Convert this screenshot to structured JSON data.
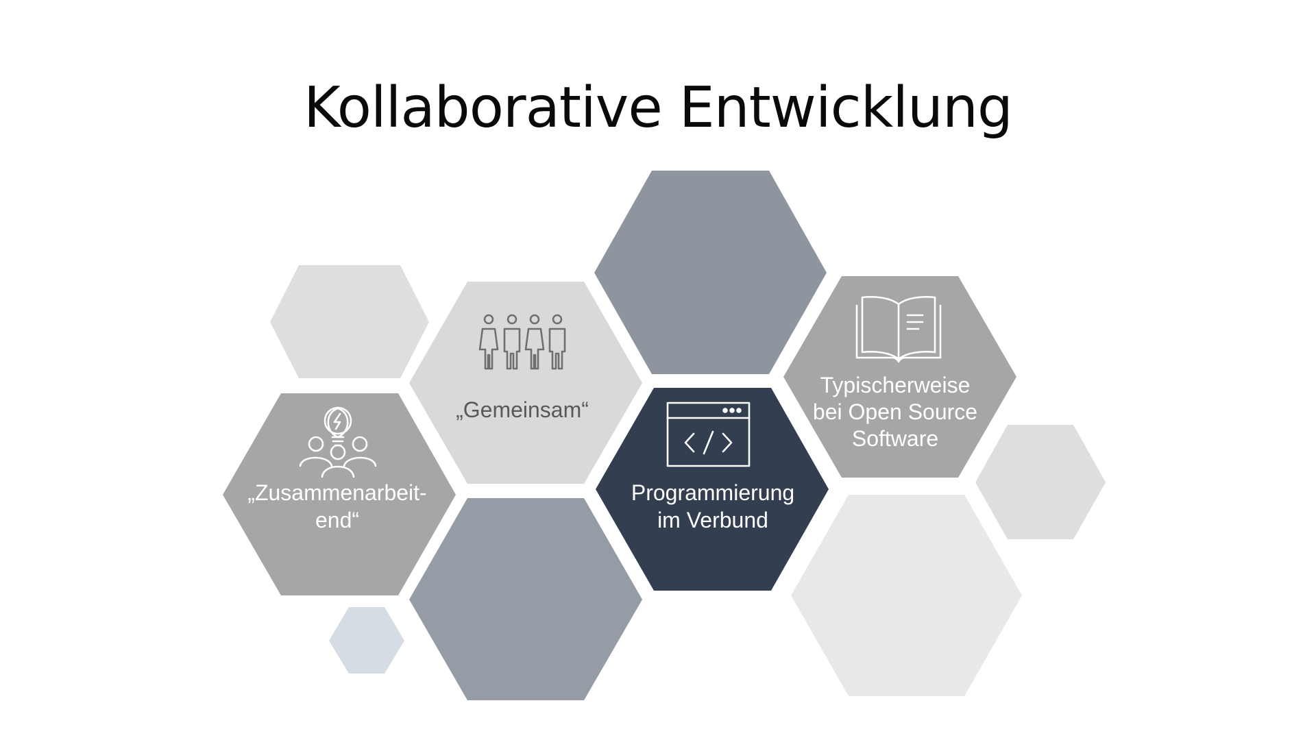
{
  "slide": {
    "title": "Kollaborative Entwicklung"
  },
  "hexagons": {
    "zusammenarbeitend": {
      "lines": [
        "„Zusammenarbeit-",
        "end“"
      ],
      "icon": "people-idea-icon",
      "color": "#a6a6a6"
    },
    "gemeinsam": {
      "lines": [
        "„Gemeinsam“"
      ],
      "icon": "group-of-people-icon",
      "color": "#d9d9d9"
    },
    "programmierung": {
      "lines": [
        "Programmierung",
        "im Verbund"
      ],
      "icon": "code-window-icon",
      "color": "#333f51"
    },
    "open_source": {
      "lines": [
        "Typischerweise",
        "bei Open Source",
        "Software"
      ],
      "icon": "open-book-icon",
      "color": "#a6a6a6"
    }
  },
  "decor_colors": {
    "slate": "#8e959f",
    "slate_light": "#959ca6",
    "light_gray": "#dedede",
    "lighter_gray": "#e8e8e8",
    "blue_gray": "#d6dce4"
  }
}
